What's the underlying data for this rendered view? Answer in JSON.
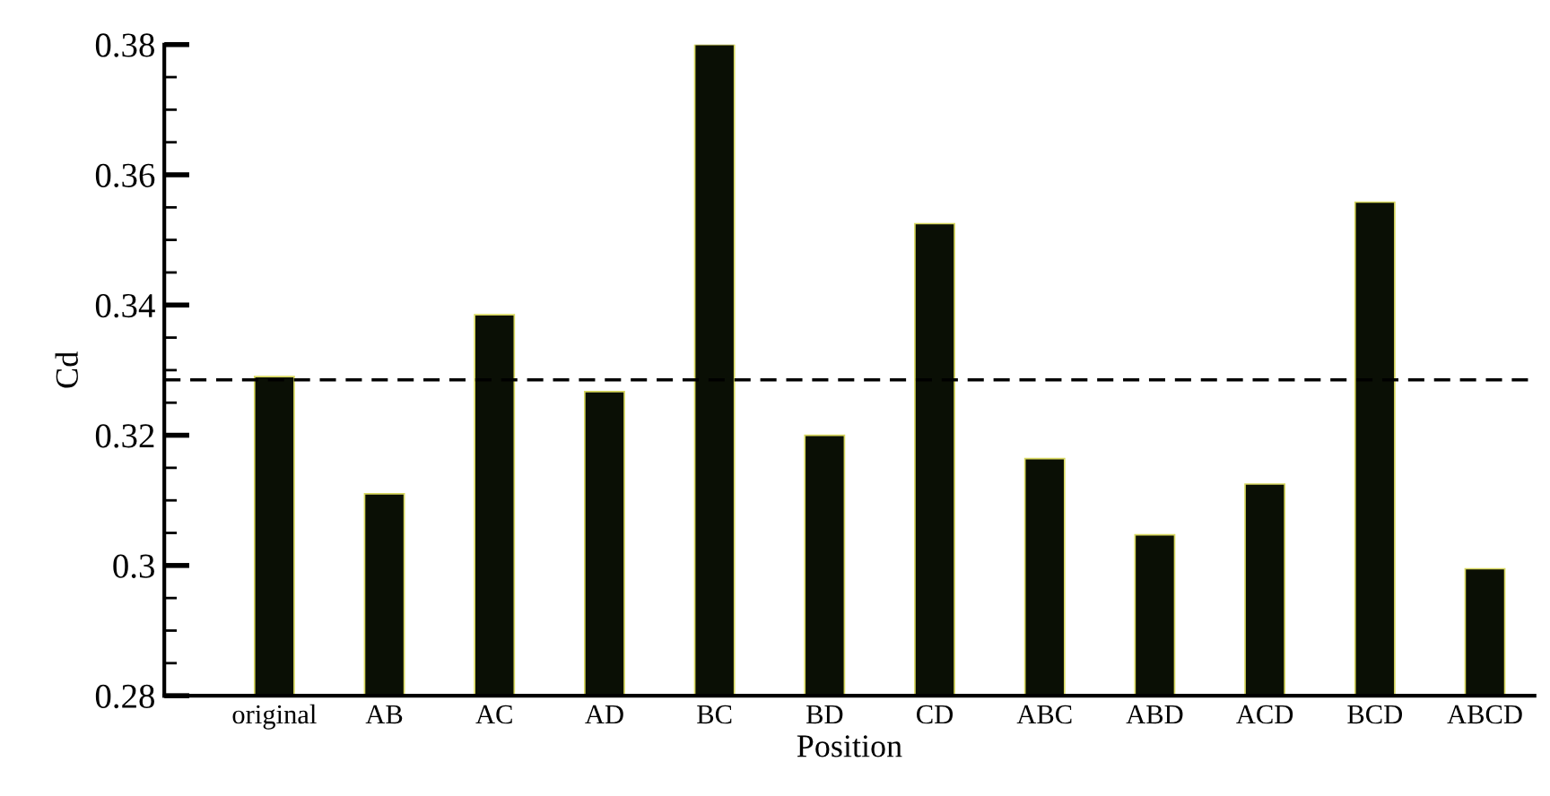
{
  "chart_data": {
    "type": "bar",
    "xlabel": "Position",
    "ylabel": "Cd",
    "categories": [
      "original",
      "AB",
      "AC",
      "AD",
      "BC",
      "BD",
      "CD",
      "ABC",
      "ABD",
      "ACD",
      "BCD",
      "ABCD"
    ],
    "values": [
      0.329,
      0.311,
      0.3385,
      0.3267,
      0.38,
      0.32,
      0.3525,
      0.3164,
      0.3047,
      0.3125,
      0.3558,
      0.2995
    ],
    "color": "#0a0f05",
    "ylim": [
      0.28,
      0.38
    ],
    "yticks": [
      0.28,
      0.3,
      0.32,
      0.34,
      0.36,
      0.38
    ],
    "ref_lines": [
      {
        "axis": "y",
        "value": 0.3285,
        "line_style": "dashed",
        "color": "#000000"
      }
    ],
    "grid": false,
    "legend": false
  }
}
